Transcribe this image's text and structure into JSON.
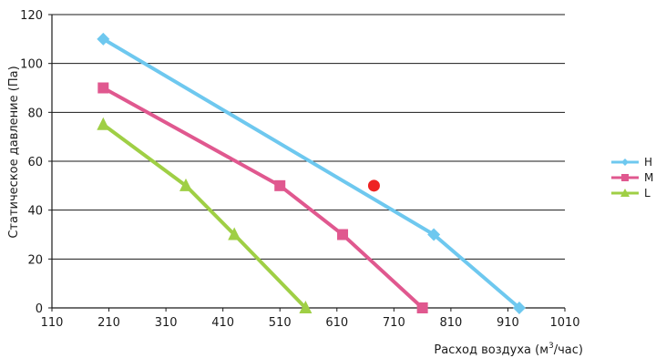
{
  "chart_data": {
    "type": "line",
    "title": "",
    "xlabel": "Расход воздуха (м³/час)",
    "xlabel_main": "Расход воздуха (м",
    "xlabel_sup": "3",
    "xlabel_tail": "/час)",
    "ylabel": "Статическое давление (Па)",
    "xlim": [
      110,
      1010
    ],
    "ylim": [
      0,
      120
    ],
    "x_ticks": [
      110,
      210,
      310,
      410,
      510,
      610,
      710,
      810,
      910,
      1010
    ],
    "y_ticks": [
      0,
      20,
      40,
      60,
      80,
      100,
      120
    ],
    "x_tick_labels": [
      "110",
      "210",
      "310",
      "410",
      "510",
      "610",
      "710",
      "810",
      "910",
      "1010"
    ],
    "y_tick_labels": [
      "0",
      "20",
      "40",
      "60",
      "80",
      "100",
      "120"
    ],
    "grid": "horizontal",
    "legend_position": "right",
    "series": [
      {
        "name": "H",
        "color": "#6ec8ef",
        "marker": "diamond",
        "points": [
          [
            200,
            110
          ],
          [
            780,
            30
          ],
          [
            930,
            0
          ]
        ]
      },
      {
        "name": "M",
        "color": "#e0588f",
        "marker": "square",
        "points": [
          [
            200,
            90
          ],
          [
            510,
            50
          ],
          [
            620,
            30
          ],
          [
            760,
            0
          ]
        ]
      },
      {
        "name": "L",
        "color": "#9fcf45",
        "marker": "triangle",
        "points": [
          [
            200,
            75
          ],
          [
            345,
            50
          ],
          [
            430,
            30
          ],
          [
            555,
            0
          ]
        ]
      }
    ],
    "annotations": [
      {
        "type": "point",
        "series": "H",
        "x": 675,
        "y": 50,
        "color": "#ee2222"
      }
    ]
  }
}
